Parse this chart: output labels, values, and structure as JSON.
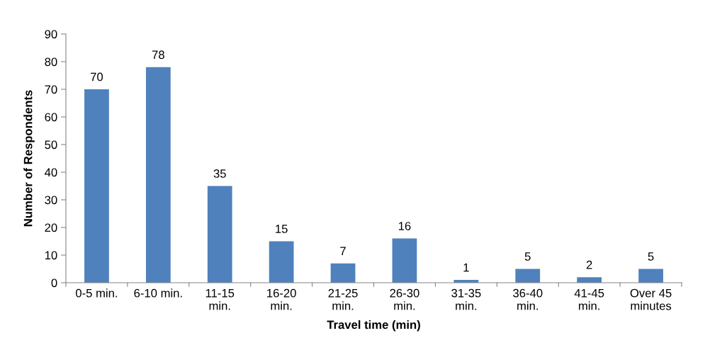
{
  "chart_data": {
    "type": "bar",
    "xlabel": "Travel time (min)",
    "ylabel": "Number of Respondents",
    "categories": [
      "0-5 min.",
      "6-10 min.",
      "11-15\nmin.",
      "16-20\nmin.",
      "21-25\nmin.",
      "26-30\nmin.",
      "31-35\nmin.",
      "36-40\nmin.",
      "41-45\nmin.",
      "Over 45\nminutes"
    ],
    "values": [
      70,
      78,
      35,
      15,
      7,
      16,
      1,
      5,
      2,
      5
    ],
    "color": "#4f81bd",
    "ylim": [
      0,
      90
    ],
    "yticks": [
      0,
      10,
      20,
      30,
      40,
      50,
      60,
      70,
      80,
      90
    ],
    "data_labels": true,
    "grid": false,
    "legend": false
  }
}
